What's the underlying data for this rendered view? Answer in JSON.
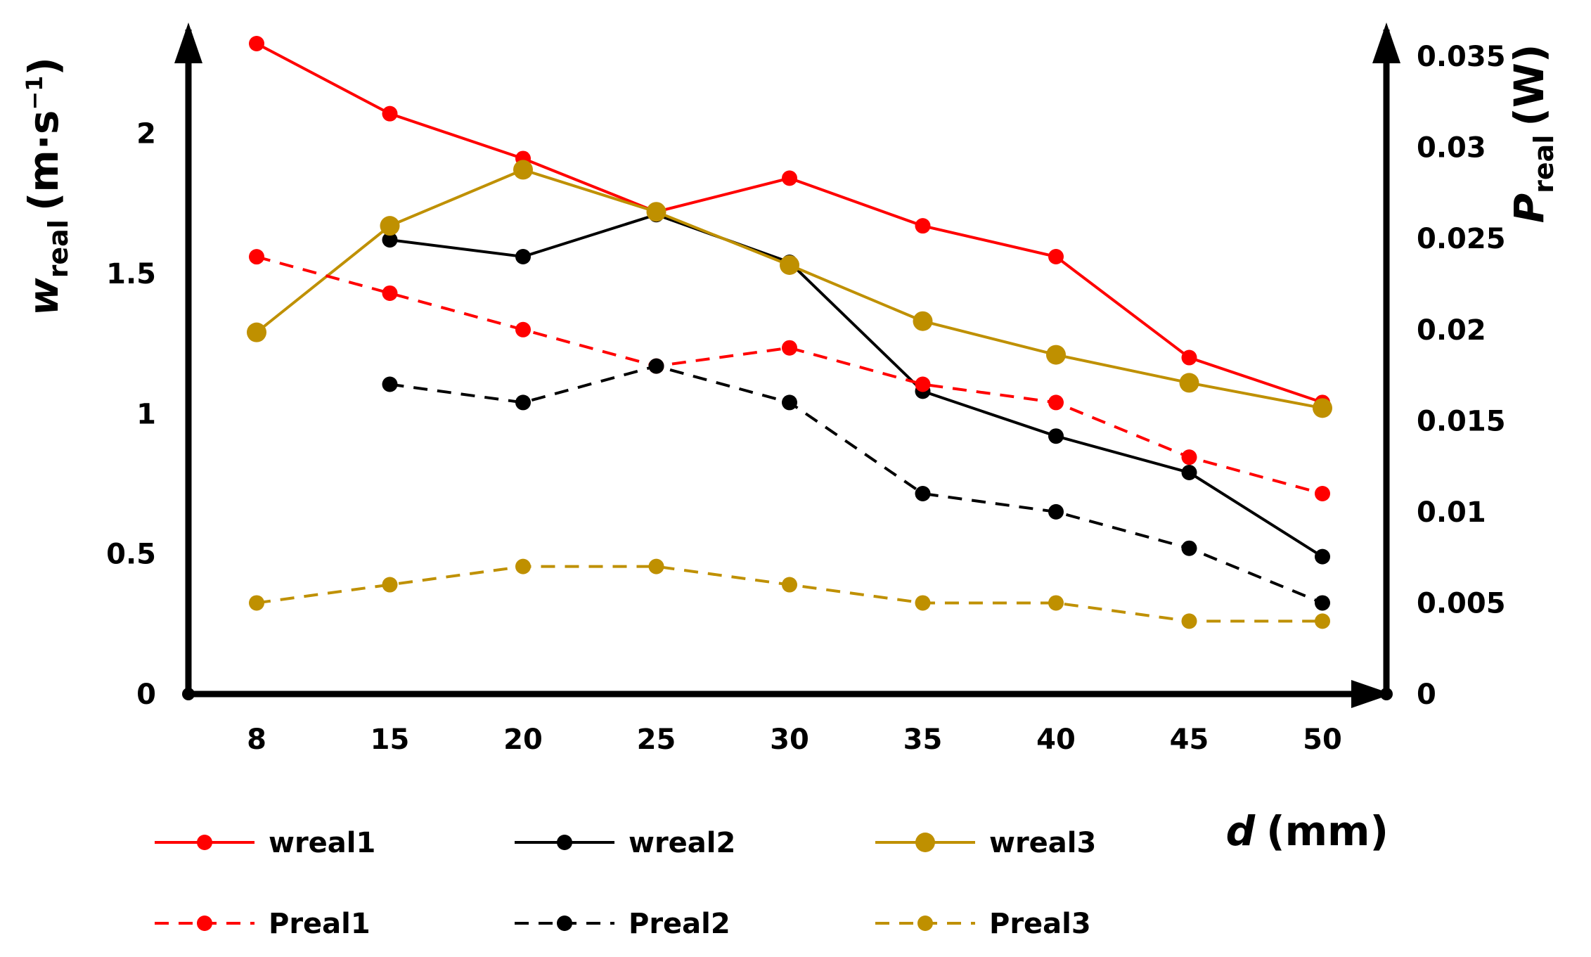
{
  "chart_data": {
    "type": "line",
    "x": [
      "8",
      "15",
      "20",
      "25",
      "30",
      "35",
      "40",
      "45",
      "50"
    ],
    "xlabel": {
      "var": "d",
      "unit": "(mm)"
    },
    "y_left": {
      "label_main": "w",
      "label_sub": "real",
      "label_unit": "(m·s",
      "label_exp": "−1",
      "label_close": ")",
      "range": [
        0,
        2.32
      ],
      "ticks": [
        "0",
        "0.5",
        "1",
        "1.5",
        "2"
      ],
      "tick_values": [
        0,
        0.5,
        1,
        1.5,
        2
      ]
    },
    "y_right": {
      "label_main": "P",
      "label_sub": "real",
      "label_unit": "(W)",
      "range": [
        0,
        0.0357
      ],
      "ticks": [
        "0",
        "0.005",
        "0.01",
        "0.015",
        "0.02",
        "0.025",
        "0.03",
        "0.035"
      ],
      "tick_values": [
        0,
        0.005,
        0.01,
        0.015,
        0.02,
        0.025,
        0.03,
        0.035
      ]
    },
    "series": [
      {
        "name": "wreal1",
        "axis": "left",
        "color": "#ff0000",
        "dashed": false,
        "marker": "small",
        "values": [
          2.32,
          2.07,
          1.91,
          1.72,
          1.84,
          1.67,
          1.56,
          1.2,
          1.04
        ]
      },
      {
        "name": "wreal2",
        "axis": "left",
        "color": "#000000",
        "dashed": false,
        "marker": "small",
        "values": [
          null,
          1.62,
          1.56,
          1.71,
          1.54,
          1.08,
          0.92,
          0.79,
          0.49
        ]
      },
      {
        "name": "wreal3",
        "axis": "left",
        "color": "#bf9000",
        "dashed": false,
        "marker": "large",
        "values": [
          1.29,
          1.67,
          1.87,
          1.72,
          1.53,
          1.33,
          1.21,
          1.11,
          1.02
        ]
      },
      {
        "name": "Preal1",
        "axis": "right",
        "color": "#ff0000",
        "dashed": true,
        "marker": "small",
        "values": [
          0.024,
          0.022,
          0.02,
          0.018,
          0.019,
          0.017,
          0.016,
          0.013,
          0.011
        ]
      },
      {
        "name": "Preal2",
        "axis": "right",
        "color": "#000000",
        "dashed": true,
        "marker": "small",
        "values": [
          null,
          0.017,
          0.016,
          0.018,
          0.016,
          0.011,
          0.01,
          0.008,
          0.005
        ]
      },
      {
        "name": "Preal3",
        "axis": "right",
        "color": "#bf9000",
        "dashed": true,
        "marker": "small",
        "values": [
          0.005,
          0.006,
          0.007,
          0.007,
          0.006,
          0.005,
          0.005,
          0.004,
          0.004
        ]
      }
    ],
    "legend": {
      "placement": "bottom",
      "columns": 3
    }
  }
}
